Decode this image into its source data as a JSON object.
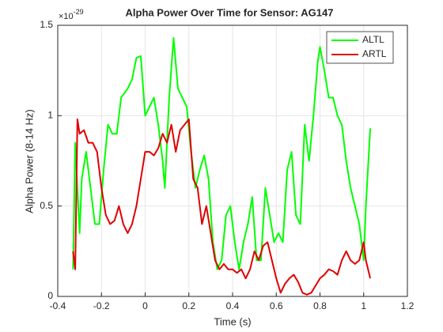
{
  "chart_data": {
    "type": "line",
    "title": "Alpha Power Over Time for Sensor: AG147",
    "x_label": "Time (s)",
    "y_label": "Alpha Power (8-14 Hz)",
    "y_multiplier": "×10",
    "y_exponent": "-29",
    "xlim": [
      -0.4,
      1.2
    ],
    "xticks": [
      -0.4,
      -0.2,
      0,
      0.2,
      0.4,
      0.6,
      0.8,
      1,
      1.2
    ],
    "ylim": [
      0,
      1.5
    ],
    "yticks": [
      0,
      0.5,
      1,
      1.5
    ],
    "grid": true,
    "legend": "top-right",
    "series": [
      {
        "name": "ALTL",
        "color": "#00ff00",
        "x": [
          -0.33,
          -0.32,
          -0.31,
          -0.3,
          -0.29,
          -0.27,
          -0.25,
          -0.23,
          -0.21,
          -0.19,
          -0.17,
          -0.15,
          -0.13,
          -0.11,
          -0.08,
          -0.06,
          -0.04,
          -0.02,
          0,
          0.02,
          0.04,
          0.06,
          0.08,
          0.09,
          0.11,
          0.13,
          0.15,
          0.17,
          0.19,
          0.21,
          0.23,
          0.25,
          0.27,
          0.29,
          0.31,
          0.33,
          0.35,
          0.37,
          0.39,
          0.41,
          0.43,
          0.45,
          0.47,
          0.49,
          0.51,
          0.53,
          0.55,
          0.57,
          0.59,
          0.61,
          0.63,
          0.65,
          0.67,
          0.69,
          0.71,
          0.73,
          0.75,
          0.77,
          0.79,
          0.8,
          0.82,
          0.84,
          0.86,
          0.88,
          0.9,
          0.92,
          0.94,
          0.96,
          0.98,
          1,
          1.01,
          1.03
        ],
        "values": [
          0.15,
          0.85,
          0.6,
          0.35,
          0.65,
          0.8,
          0.6,
          0.4,
          0.4,
          0.7,
          0.95,
          0.9,
          0.9,
          1.1,
          1.15,
          1.2,
          1.32,
          1.33,
          1,
          1.05,
          1.1,
          0.95,
          0.75,
          0.6,
          1.1,
          1.43,
          1.15,
          1.1,
          1.05,
          0.8,
          0.6,
          0.7,
          0.78,
          0.65,
          0.3,
          0.15,
          0.2,
          0.45,
          0.5,
          0.3,
          0.15,
          0.3,
          0.4,
          0.55,
          0.2,
          0.2,
          0.6,
          0.45,
          0.3,
          0.35,
          0.3,
          0.7,
          0.8,
          0.45,
          0.4,
          0.95,
          0.75,
          1,
          1.3,
          1.38,
          1.25,
          1.1,
          1.1,
          1,
          0.95,
          0.75,
          0.6,
          0.5,
          0.4,
          0.2,
          0.5,
          0.93
        ]
      },
      {
        "name": "ARTL",
        "color": "#e00000",
        "x": [
          -0.33,
          -0.32,
          -0.31,
          -0.3,
          -0.28,
          -0.26,
          -0.24,
          -0.22,
          -0.2,
          -0.18,
          -0.16,
          -0.14,
          -0.12,
          -0.1,
          -0.08,
          -0.06,
          -0.04,
          -0.02,
          0,
          0.02,
          0.04,
          0.06,
          0.08,
          0.1,
          0.12,
          0.14,
          0.16,
          0.18,
          0.2,
          0.22,
          0.24,
          0.26,
          0.28,
          0.3,
          0.32,
          0.34,
          0.36,
          0.38,
          0.4,
          0.42,
          0.44,
          0.46,
          0.48,
          0.5,
          0.52,
          0.54,
          0.56,
          0.58,
          0.6,
          0.62,
          0.64,
          0.66,
          0.68,
          0.7,
          0.72,
          0.74,
          0.76,
          0.78,
          0.8,
          0.82,
          0.84,
          0.86,
          0.88,
          0.9,
          0.92,
          0.94,
          0.96,
          0.98,
          1,
          1.01,
          1.03
        ],
        "values": [
          0.25,
          0.15,
          0.98,
          0.9,
          0.92,
          0.85,
          0.85,
          0.8,
          0.6,
          0.45,
          0.4,
          0.42,
          0.5,
          0.4,
          0.35,
          0.4,
          0.5,
          0.65,
          0.8,
          0.8,
          0.78,
          0.82,
          0.9,
          0.85,
          0.95,
          0.8,
          0.92,
          0.95,
          0.98,
          0.65,
          0.6,
          0.4,
          0.5,
          0.35,
          0.2,
          0.15,
          0.18,
          0.15,
          0.15,
          0.13,
          0.15,
          0.1,
          0.15,
          0.25,
          0.2,
          0.28,
          0.3,
          0.2,
          0.1,
          0.02,
          0.07,
          0.1,
          0.12,
          0.08,
          0.02,
          0.01,
          0.02,
          0.06,
          0.1,
          0.12,
          0.15,
          0.14,
          0.12,
          0.2,
          0.25,
          0.2,
          0.18,
          0.2,
          0.3,
          0.2,
          0.1
        ]
      }
    ]
  }
}
